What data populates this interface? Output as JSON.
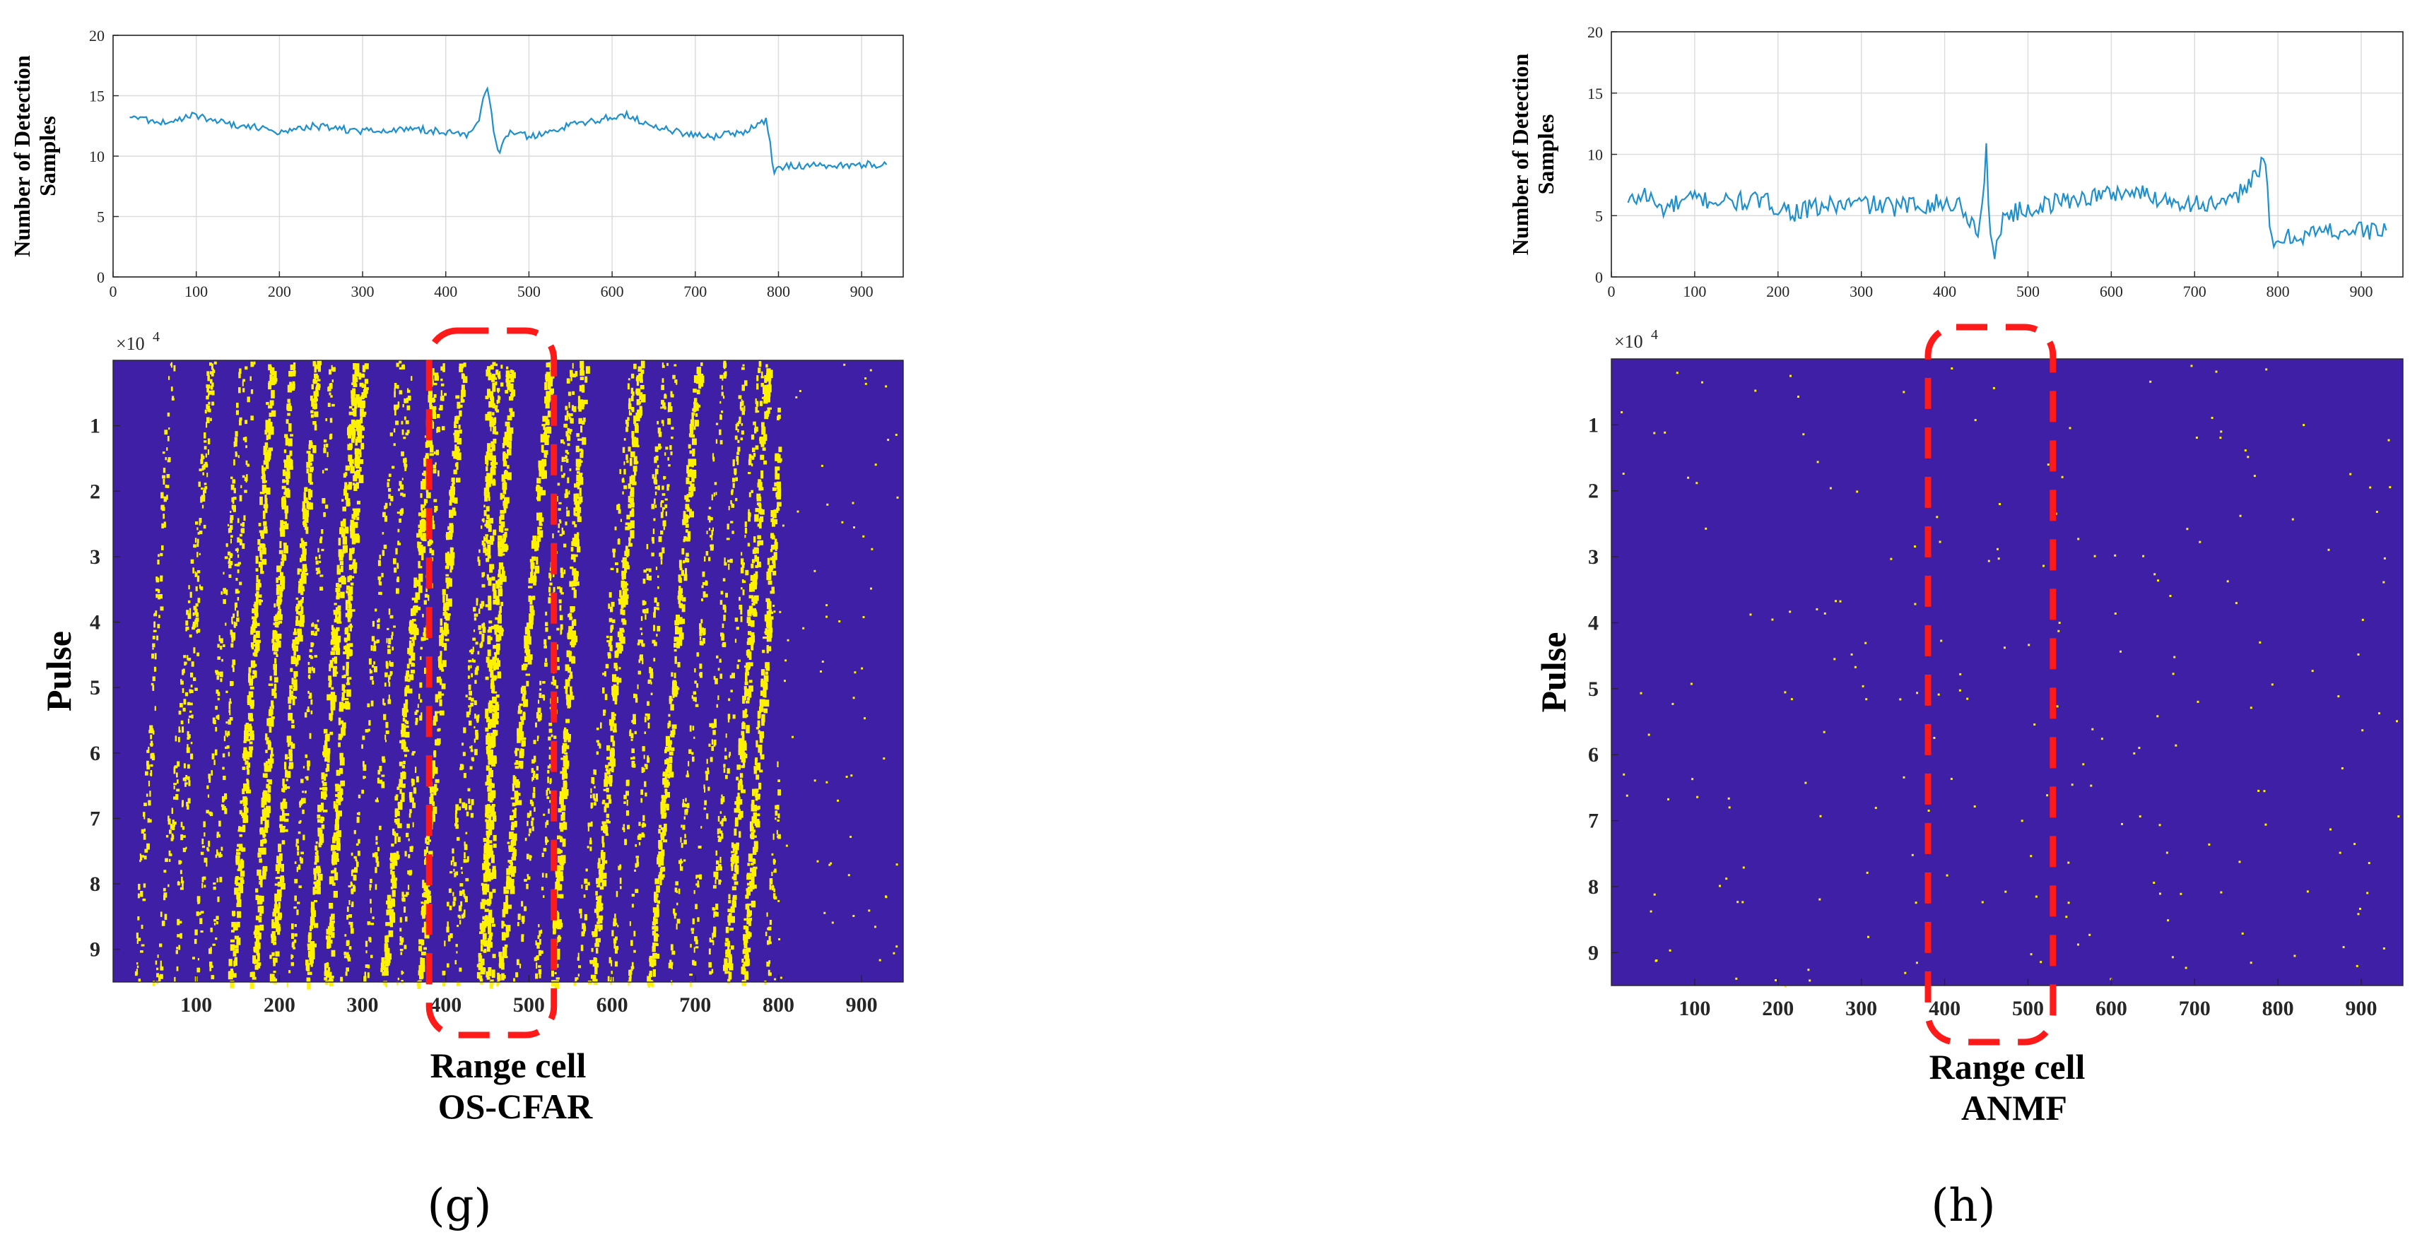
{
  "panels": [
    {
      "panel_label": "(g)",
      "method": "OS-CFAR",
      "colors": {
        "background": "#3f1fa6",
        "detection": "#fff200",
        "line": "#1e90d0",
        "box": "#ff1a1a"
      },
      "line_chart": {
        "type": "line",
        "ylabel_line1": "Number of Detection",
        "ylabel_line2": "Samples",
        "xlim": [
          0,
          950
        ],
        "ylim": [
          0,
          20
        ],
        "xticks": [
          0,
          100,
          200,
          300,
          400,
          500,
          600,
          700,
          800,
          900
        ],
        "yticks": [
          0,
          5,
          10,
          15,
          20
        ],
        "grid": true,
        "x": [
          20,
          60,
          100,
          140,
          180,
          200,
          240,
          280,
          320,
          360,
          400,
          430,
          440,
          445,
          450,
          455,
          460,
          465,
          470,
          480,
          500,
          540,
          580,
          620,
          640,
          680,
          720,
          760,
          785,
          790,
          795,
          800,
          820,
          860,
          900,
          930
        ],
        "y": [
          13.3,
          12.8,
          13.4,
          12.6,
          12.4,
          11.9,
          12.5,
          12.2,
          12.0,
          12.3,
          12.0,
          11.8,
          13.0,
          14.5,
          15.6,
          13.5,
          11.2,
          10.4,
          11.5,
          12.0,
          11.6,
          12.4,
          13.0,
          13.4,
          12.6,
          12.0,
          11.6,
          12.0,
          13.0,
          11.0,
          8.5,
          9.1,
          9.2,
          9.2,
          9.3,
          9.3
        ]
      },
      "detection_map": {
        "type": "heatmap",
        "xlabel": "Range cell",
        "ylabel": "Pulse",
        "exponent_label": "×10",
        "exponent_power": "4",
        "xlim": [
          0,
          950
        ],
        "ylim": [
          0,
          9.5
        ],
        "xticks": [
          100,
          200,
          300,
          400,
          500,
          600,
          700,
          800,
          900
        ],
        "yticks": [
          1,
          2,
          3,
          4,
          5,
          6,
          7,
          8,
          9
        ],
        "highlight_range": [
          380,
          530
        ],
        "density": "high",
        "detection_extent": 800
      }
    },
    {
      "panel_label": "(h)",
      "method": "ANMF",
      "colors": {
        "background": "#3f1fa6",
        "detection": "#fff200",
        "line": "#1e90d0",
        "box": "#ff1a1a"
      },
      "line_chart": {
        "type": "line",
        "ylabel_line1": "Number of Detection",
        "ylabel_line2": "Samples",
        "xlim": [
          0,
          950
        ],
        "ylim": [
          0,
          20
        ],
        "xticks": [
          0,
          100,
          200,
          300,
          400,
          500,
          600,
          700,
          800,
          900
        ],
        "yticks": [
          0,
          5,
          10,
          15,
          20
        ],
        "grid": true,
        "x": [
          20,
          40,
          60,
          100,
          140,
          180,
          220,
          260,
          300,
          340,
          380,
          420,
          440,
          445,
          450,
          455,
          460,
          465,
          470,
          500,
          540,
          580,
          620,
          660,
          700,
          740,
          780,
          785,
          790,
          795,
          800,
          840,
          880,
          930
        ],
        "y": [
          6.0,
          6.8,
          5.5,
          6.4,
          6.1,
          6.2,
          5.3,
          5.8,
          6.0,
          5.7,
          6.0,
          5.9,
          3.5,
          6.0,
          10.5,
          2.8,
          1.5,
          3.5,
          5.0,
          5.5,
          6.2,
          6.6,
          7.0,
          6.4,
          6.0,
          5.8,
          9.0,
          9.3,
          4.0,
          2.2,
          3.0,
          3.6,
          3.8,
          3.8
        ]
      },
      "detection_map": {
        "type": "heatmap",
        "xlabel": "Range cell",
        "ylabel": "Pulse",
        "exponent_label": "×10",
        "exponent_power": "4",
        "xlim": [
          0,
          950
        ],
        "ylim": [
          0,
          9.5
        ],
        "xticks": [
          100,
          200,
          300,
          400,
          500,
          600,
          700,
          800,
          900
        ],
        "yticks": [
          1,
          2,
          3,
          4,
          5,
          6,
          7,
          8,
          9
        ],
        "highlight_range": [
          380,
          530
        ],
        "density": "sparse",
        "detection_extent": 950
      }
    }
  ]
}
